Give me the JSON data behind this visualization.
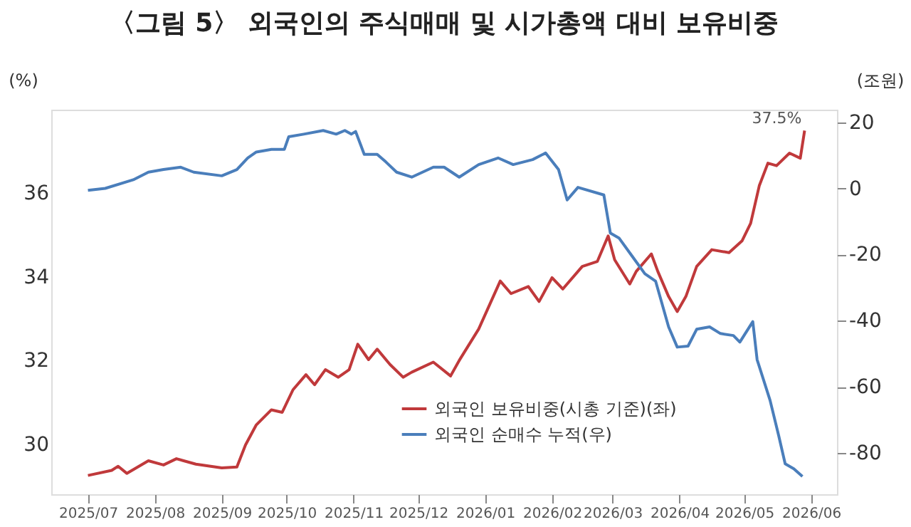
{
  "chart_data": {
    "type": "line",
    "title": "〈그림 5〉 외국인의 주식매매 및 시가총액 대비 보유비중",
    "ylabel": "(%)",
    "y2label": "(조원)",
    "xlim": [
      "2025-06-14",
      "2026-06-13"
    ],
    "xticks": [
      {
        "value": "2025-07-01",
        "label": "2025/07"
      },
      {
        "value": "2025-08-01",
        "label": "2025/08"
      },
      {
        "value": "2025-09-01",
        "label": "2025/09"
      },
      {
        "value": "2025-10-01",
        "label": "2025/10"
      },
      {
        "value": "2025-11-01",
        "label": "2025/11"
      },
      {
        "value": "2025-12-01",
        "label": "2025/12"
      },
      {
        "value": "2026-01-01",
        "label": "2026/01"
      },
      {
        "value": "2026-02-01",
        "label": "2026/02"
      },
      {
        "value": "2026-03-01",
        "label": "2026/03"
      },
      {
        "value": "2026-04-01",
        "label": "2026/04"
      },
      {
        "value": "2026-05-01",
        "label": "2026/05"
      },
      {
        "value": "2026-06-01",
        "label": "2026/06"
      }
    ],
    "ylim": [
      28.8,
      38
    ],
    "yticks": [
      30,
      32,
      34,
      36
    ],
    "y2lim": [
      -92.5,
      23.8
    ],
    "y2ticks": [
      -80,
      -60,
      -40,
      -20,
      0,
      20
    ],
    "grid": false,
    "legend": "bottom right",
    "marker": "none",
    "line_style": "solid",
    "annotations": [
      {
        "text": "37.5%",
        "x": "2026-05-29",
        "y": 37.5
      }
    ],
    "series": [
      {
        "name": "외국인 보유비중(시총 기준)(좌)",
        "color": "#c0393b",
        "axis": "y",
        "x": [
          "2025-07-01",
          "2025-07-12",
          "2025-07-15",
          "2025-07-19",
          "2025-07-29",
          "2025-08-05",
          "2025-08-11",
          "2025-08-20",
          "2025-09-01",
          "2025-09-08",
          "2025-09-12",
          "2025-09-17",
          "2025-09-24",
          "2025-09-29",
          "2025-10-04",
          "2025-10-10",
          "2025-10-14",
          "2025-10-19",
          "2025-10-25",
          "2025-10-30",
          "2025-11-03",
          "2025-11-08",
          "2025-11-12",
          "2025-11-18",
          "2025-11-24",
          "2025-11-28",
          "2025-12-08",
          "2025-12-16",
          "2025-12-20",
          "2025-12-29",
          "2026-01-08",
          "2026-01-13",
          "2026-01-21",
          "2026-01-26",
          "2026-02-01",
          "2026-02-06",
          "2026-02-15",
          "2026-02-22",
          "2026-02-27",
          "2026-03-02",
          "2026-03-09",
          "2026-03-12",
          "2026-03-19",
          "2026-03-22",
          "2026-03-27",
          "2026-03-31",
          "2026-04-04",
          "2026-04-09",
          "2026-04-16",
          "2026-04-24",
          "2026-04-30",
          "2026-05-04",
          "2026-05-08",
          "2026-05-12",
          "2026-05-16",
          "2026-05-22",
          "2026-05-27",
          "2026-05-29"
        ],
        "values": [
          29.25,
          29.37,
          29.47,
          29.3,
          29.6,
          29.5,
          29.65,
          29.52,
          29.43,
          29.45,
          29.98,
          30.46,
          30.82,
          30.76,
          31.3,
          31.66,
          31.42,
          31.78,
          31.6,
          31.78,
          32.39,
          32.02,
          32.27,
          31.9,
          31.6,
          31.72,
          31.96,
          31.63,
          32.0,
          32.75,
          33.9,
          33.6,
          33.77,
          33.41,
          33.98,
          33.71,
          34.25,
          34.37,
          34.98,
          34.41,
          33.83,
          34.13,
          34.55,
          34.13,
          33.53,
          33.17,
          33.53,
          34.25,
          34.65,
          34.58,
          34.86,
          35.28,
          36.18,
          36.72,
          36.66,
          36.96,
          36.84,
          37.5
        ]
      },
      {
        "name": "외국인 순매수 누적(우)",
        "color": "#4a7ebb",
        "axis": "y2",
        "x": [
          "2025-07-01",
          "2025-07-09",
          "2025-07-22",
          "2025-07-29",
          "2025-08-05",
          "2025-08-13",
          "2025-08-19",
          "2025-09-01",
          "2025-09-08",
          "2025-09-13",
          "2025-09-17",
          "2025-09-24",
          "2025-09-30",
          "2025-10-02",
          "2025-10-09",
          "2025-10-18",
          "2025-10-24",
          "2025-10-28",
          "2025-10-31",
          "2025-11-02",
          "2025-11-06",
          "2025-11-12",
          "2025-11-16",
          "2025-11-21",
          "2025-11-28",
          "2025-12-08",
          "2025-12-13",
          "2025-12-20",
          "2025-12-29",
          "2026-01-07",
          "2026-01-14",
          "2026-01-23",
          "2026-01-29",
          "2026-02-04",
          "2026-02-08",
          "2026-02-13",
          "2026-02-25",
          "2026-02-28",
          "2026-03-04",
          "2026-03-10",
          "2026-03-16",
          "2026-03-21",
          "2026-03-27",
          "2026-03-31",
          "2026-04-05",
          "2026-04-09",
          "2026-04-15",
          "2026-04-20",
          "2026-04-26",
          "2026-04-29",
          "2026-05-05",
          "2026-05-07",
          "2026-05-13",
          "2026-05-17",
          "2026-05-20",
          "2026-05-24",
          "2026-05-28"
        ],
        "values": [
          -0.6,
          0,
          2.6,
          4.9,
          5.7,
          6.4,
          4.9,
          3.8,
          5.7,
          9.2,
          11.0,
          11.8,
          11.8,
          15.6,
          16.4,
          17.5,
          16.4,
          17.5,
          16.4,
          17.2,
          10.3,
          10.3,
          8.0,
          4.9,
          3.4,
          6.4,
          6.4,
          3.4,
          7.2,
          9.2,
          7.2,
          8.7,
          10.7,
          5.7,
          -3.5,
          0.3,
          -2.0,
          -13.5,
          -15.0,
          -20.4,
          -25.8,
          -28.1,
          -41.9,
          -48.0,
          -47.7,
          -42.6,
          -41.9,
          -43.9,
          -44.5,
          -46.5,
          -40.3,
          -51.8,
          -64.1,
          -74.8,
          -83.3,
          -84.8,
          -87.1
        ]
      }
    ]
  }
}
